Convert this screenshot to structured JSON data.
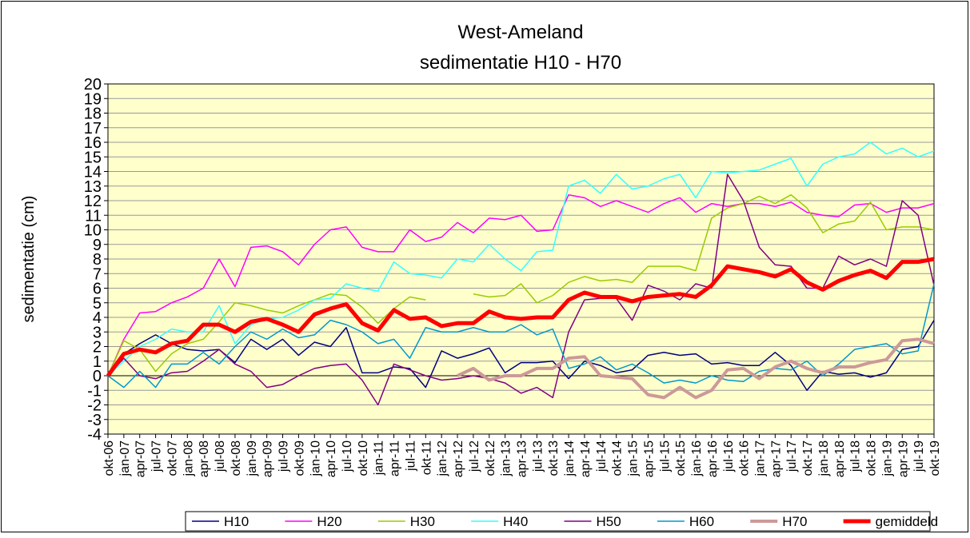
{
  "chart_data": {
    "type": "line",
    "title": "West-Ameland",
    "subtitle": "sedimentatie H10 - H70",
    "y_label": "sedimentatie (cm)",
    "categories": [
      "okt-06",
      "jan-07",
      "apr-07",
      "jul-07",
      "okt-07",
      "jan-08",
      "apr-08",
      "jul-08",
      "okt-08",
      "jan-09",
      "apr-09",
      "jul-09",
      "okt-09",
      "jan-10",
      "apr-10",
      "jul-10",
      "okt-10",
      "jan-11",
      "apr-11",
      "jul-11",
      "okt-11",
      "jan-12",
      "apr-12",
      "jul-12",
      "okt-12",
      "jan-13",
      "apr-13",
      "jul-13",
      "okt-13",
      "jan-14",
      "apr-14",
      "jul-14",
      "okt-14",
      "jan-15",
      "apr-15",
      "jul-15",
      "okt-15",
      "jan-16",
      "apr-16",
      "jul-16",
      "okt-16",
      "jan-17",
      "apr-17",
      "jul-17",
      "okt-17",
      "jan-18",
      "apr-18",
      "jul-18",
      "okt-18",
      "jan-19",
      "apr-19",
      "jul-19",
      "okt-19"
    ],
    "series": [
      {
        "name": "H10",
        "color": "#000080",
        "width": 1.5,
        "values": [
          0,
          1.5,
          2.2,
          2.8,
          2.2,
          1.8,
          1.7,
          1.8,
          0.9,
          2.5,
          1.8,
          2.5,
          1.4,
          2.3,
          2.0,
          3.3,
          0.2,
          0.2,
          0.6,
          0.5,
          -0.8,
          1.7,
          1.2,
          1.5,
          1.9,
          0.2,
          0.9,
          0.9,
          1.0,
          -0.2,
          1.0,
          0.7,
          0.2,
          0.4,
          1.4,
          1.6,
          1.4,
          1.5,
          0.8,
          0.9,
          0.7,
          0.7,
          1.6,
          0.7,
          -1.0,
          0.3,
          0.1,
          0.2,
          -0.1,
          0.2,
          1.8,
          2.0,
          3.8
        ]
      },
      {
        "name": "H20",
        "color": "#ff00ff",
        "width": 1.5,
        "values": [
          0,
          2.5,
          4.3,
          4.4,
          5.0,
          5.4,
          6.0,
          8.0,
          6.1,
          8.8,
          8.9,
          8.5,
          7.6,
          9.0,
          10.0,
          10.2,
          8.8,
          8.5,
          8.5,
          10.0,
          9.2,
          9.5,
          10.5,
          9.8,
          10.8,
          10.7,
          11.0,
          9.9,
          10.0,
          12.4,
          12.2,
          11.6,
          12.0,
          11.6,
          11.2,
          11.8,
          12.2,
          11.2,
          11.8,
          11.6,
          11.8,
          11.8,
          11.6,
          11.9,
          11.2,
          11.0,
          10.9,
          11.7,
          11.8,
          11.2,
          11.5,
          11.5,
          11.8
        ]
      },
      {
        "name": "H30",
        "color": "#99cc00",
        "width": 1.5,
        "values": [
          0,
          2.4,
          1.8,
          0.3,
          1.5,
          2.2,
          2.5,
          3.7,
          5.0,
          4.8,
          4.5,
          4.3,
          4.8,
          5.2,
          5.6,
          5.5,
          4.7,
          3.6,
          4.6,
          5.4,
          5.2,
          null,
          null,
          5.6,
          5.4,
          5.5,
          6.3,
          5.0,
          5.5,
          6.4,
          6.8,
          6.5,
          6.6,
          6.4,
          7.5,
          7.5,
          7.5,
          7.2,
          10.8,
          11.5,
          11.8,
          12.3,
          11.8,
          12.4,
          11.5,
          9.8,
          10.4,
          10.6,
          11.9,
          10.0,
          10.2,
          10.2,
          10.0
        ]
      },
      {
        "name": "H40",
        "color": "#33ffff",
        "width": 1.5,
        "values": [
          0,
          1.0,
          2.0,
          2.5,
          3.2,
          3.0,
          3.0,
          4.8,
          2.2,
          3.5,
          3.9,
          4.0,
          4.5,
          5.2,
          5.3,
          6.3,
          6.0,
          5.8,
          7.8,
          7.0,
          6.9,
          6.7,
          8.0,
          7.8,
          9.0,
          8.0,
          7.2,
          8.5,
          8.6,
          13.0,
          13.4,
          12.5,
          13.8,
          12.8,
          13.0,
          13.5,
          13.8,
          12.2,
          14.0,
          13.9,
          14.0,
          14.1,
          14.5,
          14.9,
          13.0,
          14.5,
          15.0,
          15.2,
          16.0,
          15.2,
          15.6,
          15.0,
          15.4
        ]
      },
      {
        "name": "H50",
        "color": "#800080",
        "width": 1.5,
        "values": [
          0,
          1.2,
          0.0,
          -0.2,
          0.2,
          0.3,
          1.0,
          1.8,
          0.8,
          0.3,
          -0.8,
          -0.6,
          0.0,
          0.5,
          0.7,
          0.8,
          -0.3,
          -2.0,
          0.8,
          0.4,
          0.0,
          -0.3,
          -0.2,
          0.0,
          -0.2,
          -0.5,
          -1.2,
          -0.8,
          -1.5,
          3.0,
          5.2,
          5.3,
          5.3,
          3.8,
          6.2,
          5.8,
          5.2,
          6.3,
          6.0,
          13.8,
          12.0,
          8.8,
          7.6,
          7.5,
          6.0,
          6.0,
          8.2,
          7.6,
          8.0,
          7.5,
          12.0,
          11.0,
          6.2
        ]
      },
      {
        "name": "H60",
        "color": "#0099cc",
        "width": 1.5,
        "values": [
          0,
          -0.8,
          0.3,
          -0.8,
          0.8,
          0.8,
          1.6,
          0.8,
          2.0,
          3.0,
          2.5,
          3.2,
          2.6,
          2.8,
          3.8,
          3.5,
          3.0,
          2.2,
          2.5,
          1.2,
          3.3,
          3.0,
          3.0,
          3.3,
          3.0,
          3.0,
          3.5,
          2.8,
          3.2,
          0.5,
          0.8,
          1.3,
          0.4,
          0.8,
          0.2,
          -0.5,
          -0.3,
          -0.5,
          0.0,
          -0.3,
          -0.4,
          0.3,
          0.5,
          0.4,
          1.0,
          0.0,
          0.8,
          1.8,
          2.0,
          2.2,
          1.5,
          1.7,
          6.3
        ]
      },
      {
        "name": "H70",
        "color": "#cc9999",
        "width": 4,
        "values": [
          null,
          null,
          null,
          null,
          null,
          null,
          null,
          null,
          null,
          null,
          null,
          null,
          null,
          null,
          null,
          null,
          null,
          null,
          null,
          null,
          null,
          null,
          0.0,
          0.5,
          -0.3,
          0.0,
          0.0,
          0.5,
          0.5,
          1.2,
          1.3,
          0.0,
          -0.1,
          -0.2,
          -1.3,
          -1.5,
          -0.8,
          -1.5,
          -1.0,
          0.4,
          0.5,
          -0.2,
          0.6,
          1.0,
          0.5,
          0.2,
          0.6,
          0.6,
          0.9,
          1.1,
          2.4,
          2.5,
          2.2
        ]
      },
      {
        "name": "gemiddeld",
        "color": "#ff0000",
        "width": 5,
        "values": [
          0,
          1.5,
          1.8,
          1.6,
          2.2,
          2.4,
          3.5,
          3.5,
          3.0,
          3.7,
          3.9,
          3.5,
          3.0,
          4.2,
          4.6,
          4.9,
          3.6,
          3.1,
          4.5,
          3.9,
          4.0,
          3.4,
          3.6,
          3.6,
          4.4,
          4.0,
          3.9,
          4.0,
          4.0,
          5.2,
          5.7,
          5.4,
          5.4,
          5.1,
          5.4,
          5.5,
          5.6,
          5.4,
          6.2,
          7.5,
          7.3,
          7.1,
          6.8,
          7.3,
          6.4,
          5.9,
          6.5,
          6.9,
          7.2,
          6.7,
          7.8,
          7.8,
          8.0
        ]
      }
    ],
    "ylim": [
      -4,
      20
    ],
    "yticks": [
      -4,
      -3,
      -2,
      -1,
      0,
      1,
      2,
      3,
      4,
      5,
      6,
      7,
      8,
      9,
      10,
      11,
      12,
      13,
      14,
      15,
      16,
      17,
      18,
      19,
      20
    ],
    "grid": true,
    "plot_background": "#ffffcc",
    "legend": "bottom"
  }
}
